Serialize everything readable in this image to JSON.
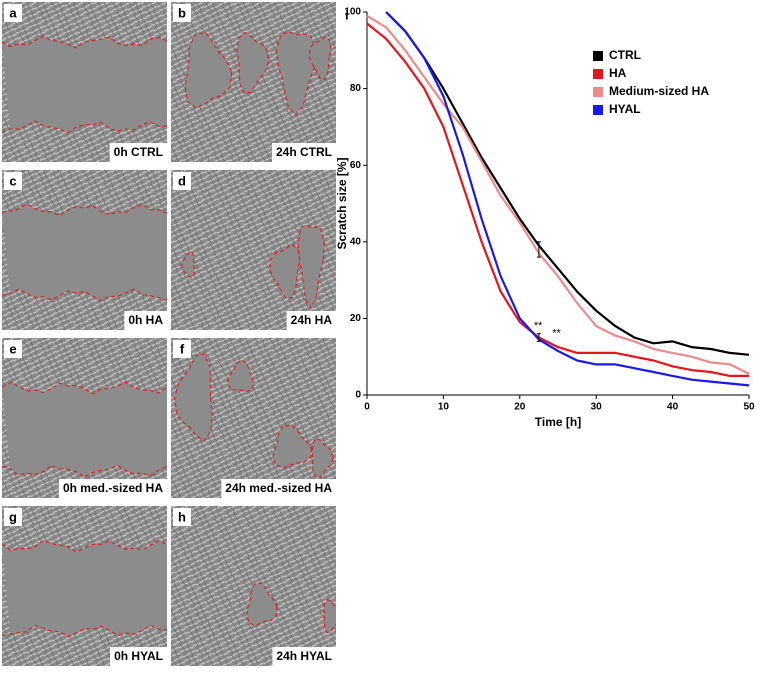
{
  "panels": [
    {
      "letter": "a",
      "caption": "0h CTRL"
    },
    {
      "letter": "b",
      "caption": "24h CTRL"
    },
    {
      "letter": "c",
      "caption": "0h HA"
    },
    {
      "letter": "d",
      "caption": "24h HA"
    },
    {
      "letter": "e",
      "caption": "0h med.-sized HA"
    },
    {
      "letter": "f",
      "caption": "24h med.-sized HA"
    },
    {
      "letter": "g",
      "caption": "0h HYAL"
    },
    {
      "letter": "h",
      "caption": "24h HYAL"
    }
  ],
  "chart_data": {
    "type": "line",
    "panel_letter": "i",
    "x_label": "Time [h]",
    "y_label": "Scratch size [%]",
    "x": [
      0,
      2.5,
      5,
      7.5,
      10,
      12.5,
      15,
      17.5,
      20,
      22.5,
      25,
      27.5,
      30,
      32.5,
      35,
      37.5,
      40,
      42.5,
      45,
      47.5,
      50
    ],
    "series": [
      {
        "name": "CTRL",
        "color": "#000000",
        "values": [
          null,
          100,
          95,
          88,
          80,
          71,
          62,
          54,
          46,
          39,
          33,
          27,
          22,
          18,
          15,
          13.5,
          14,
          12.5,
          12,
          11,
          10.5
        ]
      },
      {
        "name": "HA",
        "color": "#e8141c",
        "values": [
          97,
          93,
          87,
          80,
          70,
          55,
          40,
          27,
          19,
          15,
          12.5,
          11,
          11,
          11,
          10,
          9,
          7.5,
          6.5,
          6,
          5,
          5
        ]
      },
      {
        "name": "Medium-sized HA",
        "color": "#f08a8a",
        "values": [
          99,
          96,
          90,
          83,
          76,
          70,
          61,
          52,
          45,
          37,
          31,
          24,
          18,
          15.5,
          14,
          12,
          11,
          10,
          8.5,
          8,
          5.5
        ]
      },
      {
        "name": "HYAL",
        "color": "#1a1ae6",
        "values": [
          null,
          100,
          95,
          88,
          78,
          63,
          46,
          31,
          20,
          14.5,
          11.5,
          9,
          8,
          8,
          7,
          6,
          5,
          4,
          3.5,
          3,
          2.5
        ]
      }
    ],
    "error_bars": [
      {
        "x": 22.5,
        "value": 38,
        "error": 2
      },
      {
        "x": 22.5,
        "value": 15,
        "error": 1
      }
    ],
    "annotations": [
      {
        "text": "**",
        "x": 22.4,
        "y": 18
      },
      {
        "text": "**",
        "x": 24.8,
        "y": 16
      }
    ],
    "xlim": [
      0,
      50
    ],
    "ylim": [
      0,
      100
    ],
    "xticks": [
      0,
      10,
      20,
      30,
      40,
      50
    ],
    "yticks": [
      0,
      20,
      40,
      60,
      80,
      100
    ],
    "legend": "upper-right",
    "grid": false
  }
}
